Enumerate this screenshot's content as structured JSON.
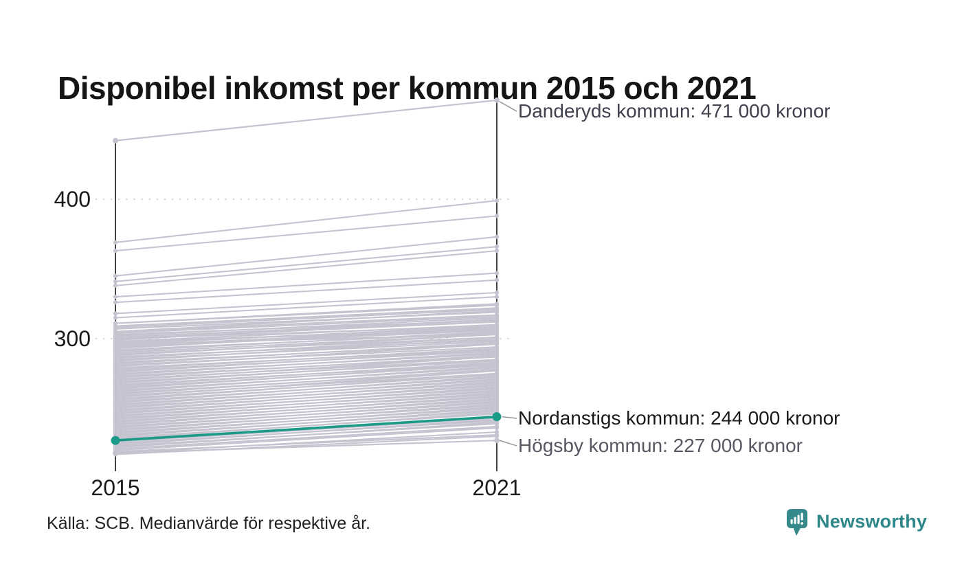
{
  "title": "Disponibel inkomst per kommun 2015 och 2021",
  "source": "Källa: SCB. Medianvärde för respektive år.",
  "branding": {
    "name": "Newsworthy"
  },
  "colors": {
    "background_line": "#c5c3d0",
    "highlight": "#1a9a87",
    "axis": "#141414",
    "grid": "#d9d9d9",
    "connector": "#8f8f98",
    "brand": "#2e8789"
  },
  "chart_data": {
    "type": "line",
    "subtype": "slope-chart",
    "x_labels": [
      "2015",
      "2021"
    ],
    "y_ticks": [
      {
        "value": 300,
        "label": "300"
      },
      {
        "value": 400,
        "label": "400"
      }
    ],
    "ylim": [
      205,
      480
    ],
    "grid": "dotted-horizontal",
    "unit_note": "values in thousands of kronor (tick labels 300/400)",
    "annotated": [
      {
        "name": "Danderyds kommun",
        "values": [
          442,
          471
        ],
        "label": "Danderyds kommun: 471 000 kronor",
        "style": "plain"
      },
      {
        "name": "Nordanstigs kommun",
        "values": [
          227,
          244
        ],
        "label": "Nordanstigs kommun: 244 000 kronor",
        "style": "highlight"
      },
      {
        "name": "Högsby kommun",
        "values": [
          218,
          227
        ],
        "label": "Högsby kommun: 227 000 kronor",
        "style": "plain"
      }
    ],
    "background_series": [
      [
        369,
        399
      ],
      [
        363,
        388
      ],
      [
        345,
        373
      ],
      [
        341,
        366
      ],
      [
        338,
        363
      ],
      [
        330,
        347
      ],
      [
        326,
        342
      ],
      [
        318,
        333
      ],
      [
        315,
        330
      ],
      [
        311,
        325
      ],
      [
        308,
        321
      ],
      [
        305,
        317
      ],
      [
        303,
        313
      ],
      [
        300,
        309
      ],
      [
        298,
        306
      ],
      [
        296,
        303
      ],
      [
        311,
        324
      ],
      [
        309,
        322
      ],
      [
        307,
        319
      ],
      [
        305,
        320
      ],
      [
        304,
        316
      ],
      [
        302,
        315
      ],
      [
        301,
        313
      ],
      [
        300,
        312
      ],
      [
        299,
        314
      ],
      [
        298,
        310
      ],
      [
        297,
        308
      ],
      [
        296,
        309
      ],
      [
        295,
        307
      ],
      [
        294,
        306
      ],
      [
        293,
        308
      ],
      [
        292,
        304
      ],
      [
        291,
        305
      ],
      [
        290,
        303
      ],
      [
        289,
        301
      ],
      [
        288,
        303
      ],
      [
        287,
        299
      ],
      [
        286,
        301
      ],
      [
        285,
        298
      ],
      [
        284,
        300
      ],
      [
        283,
        296
      ],
      [
        282,
        297
      ],
      [
        281,
        294
      ],
      [
        280,
        296
      ],
      [
        279,
        292
      ],
      [
        278,
        293
      ],
      [
        277,
        291
      ],
      [
        276,
        292
      ],
      [
        275,
        289
      ],
      [
        274,
        290
      ],
      [
        273,
        287
      ],
      [
        272,
        288
      ],
      [
        271,
        285
      ],
      [
        270,
        287
      ],
      [
        269,
        284
      ],
      [
        268,
        285
      ],
      [
        267,
        282
      ],
      [
        266,
        283
      ],
      [
        265,
        281
      ],
      [
        264,
        282
      ],
      [
        263,
        279
      ],
      [
        262,
        280
      ],
      [
        261,
        277
      ],
      [
        260,
        278
      ],
      [
        259,
        275
      ],
      [
        258,
        277
      ],
      [
        257,
        274
      ],
      [
        256,
        275
      ],
      [
        255,
        272
      ],
      [
        254,
        273
      ],
      [
        253,
        270
      ],
      [
        252,
        271
      ],
      [
        251,
        268
      ],
      [
        250,
        269
      ],
      [
        249,
        266
      ],
      [
        248,
        267
      ],
      [
        247,
        264
      ],
      [
        246,
        265
      ],
      [
        245,
        262
      ],
      [
        244,
        263
      ],
      [
        243,
        260
      ],
      [
        242,
        261
      ],
      [
        241,
        258
      ],
      [
        240,
        259
      ],
      [
        239,
        256
      ],
      [
        238,
        257
      ],
      [
        237,
        254
      ],
      [
        236,
        255
      ],
      [
        235,
        252
      ],
      [
        234,
        253
      ],
      [
        233,
        250
      ],
      [
        232,
        251
      ],
      [
        231,
        248
      ],
      [
        230,
        249
      ],
      [
        229,
        246
      ],
      [
        228,
        247
      ],
      [
        226,
        243
      ],
      [
        225,
        241
      ],
      [
        224,
        242
      ],
      [
        223,
        239
      ],
      [
        222,
        240
      ],
      [
        221,
        237
      ],
      [
        220,
        236
      ],
      [
        219,
        231
      ],
      [
        218,
        233
      ],
      [
        217,
        230
      ]
    ]
  }
}
